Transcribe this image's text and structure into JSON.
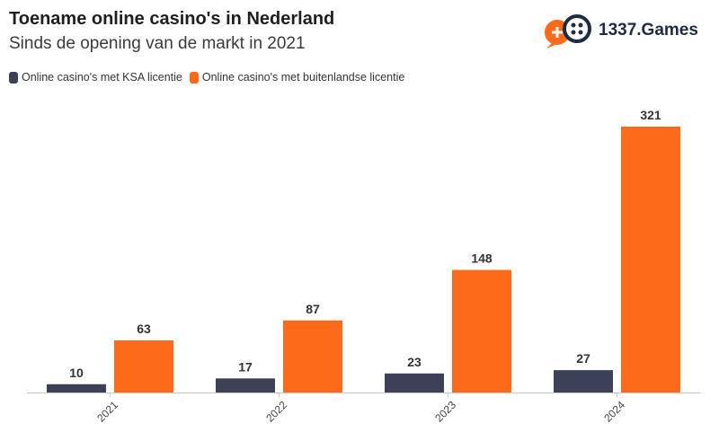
{
  "header": {
    "title": "Toename online casino's in Nederland",
    "subtitle": "Sinds de opening van de markt in 2021"
  },
  "logo": {
    "text": "1337.Games",
    "icon": "gamepad-icon"
  },
  "colors": {
    "ksa": "#3d4157",
    "foreign": "#fd6a1a",
    "axis": "#c8c8c8",
    "label": "#333333"
  },
  "chart_data": {
    "type": "bar",
    "categories": [
      "2021",
      "2022",
      "2023",
      "2024"
    ],
    "series": [
      {
        "name": "Online casino's met KSA licentie",
        "values": [
          10,
          17,
          23,
          27
        ]
      },
      {
        "name": "Online casino's met buitenlandse licentie",
        "values": [
          63,
          87,
          148,
          321
        ]
      }
    ],
    "legend_position": "top-left",
    "grid": false
  }
}
